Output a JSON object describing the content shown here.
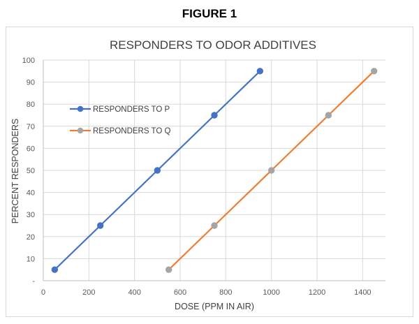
{
  "figure_label": "FIGURE 1",
  "chart_data": {
    "type": "scatter",
    "title": "RESPONDERS TO ODOR ADDITIVES",
    "xlabel": "DOSE (PPM IN AIR)",
    "ylabel": "PERCENT RESPONDERS",
    "xlim": [
      0,
      1500
    ],
    "ylim": [
      0,
      100
    ],
    "x_ticks": [
      0,
      200,
      400,
      600,
      800,
      1000,
      1200,
      1400
    ],
    "y_ticks": [
      0,
      10,
      20,
      30,
      40,
      50,
      60,
      70,
      80,
      90,
      100
    ],
    "y_tick_labels": [
      "-",
      "10",
      "20",
      "30",
      "40",
      "50",
      "60",
      "70",
      "80",
      "90",
      "100"
    ],
    "grid": true,
    "legend_position": "left",
    "series": [
      {
        "name": "RESPONDERS TO P",
        "line_color": "#4472c4",
        "marker_color": "#4472c4",
        "x": [
          50,
          250,
          500,
          750,
          950
        ],
        "y": [
          5,
          25,
          50,
          75,
          95
        ]
      },
      {
        "name": "RESPONDERS TO Q",
        "line_color": "#ed7d31",
        "marker_color": "#a5a5a5",
        "x": [
          550,
          750,
          1000,
          1250,
          1450
        ],
        "y": [
          5,
          25,
          50,
          75,
          95
        ]
      }
    ]
  }
}
